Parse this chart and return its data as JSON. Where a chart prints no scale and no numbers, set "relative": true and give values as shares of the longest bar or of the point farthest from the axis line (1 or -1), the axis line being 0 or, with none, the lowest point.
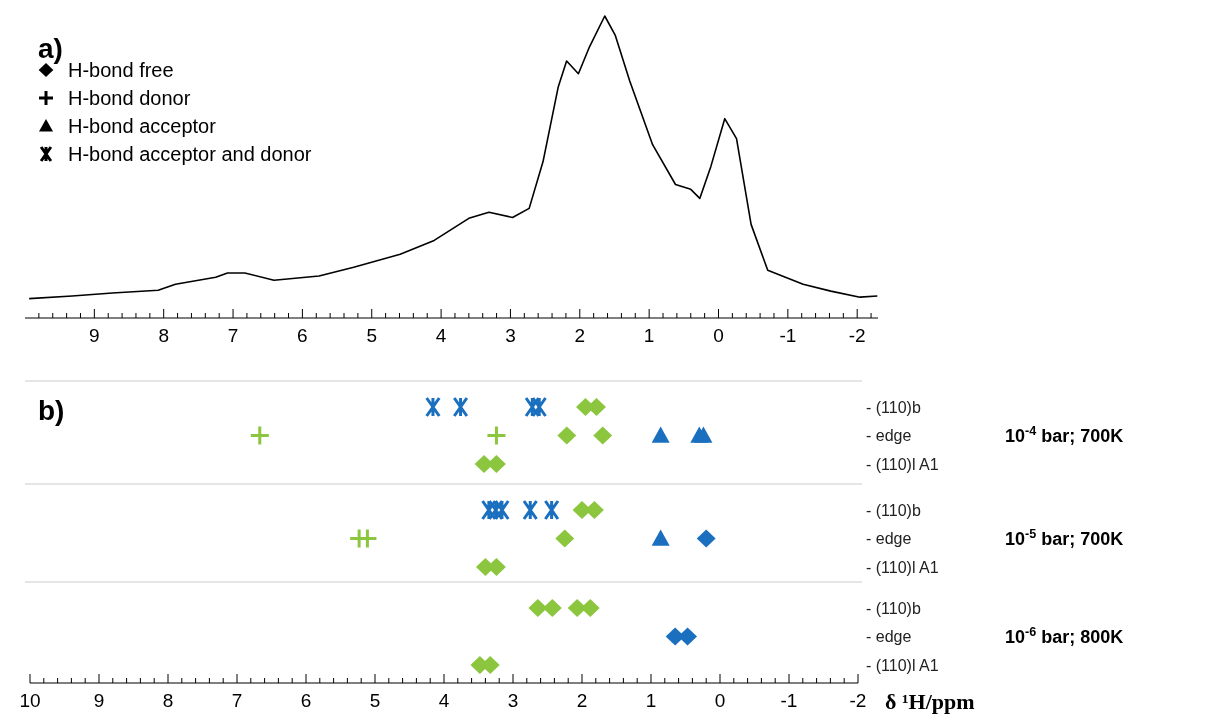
{
  "chart_data": [
    {
      "type": "line",
      "title": "a)",
      "relative": true,
      "xlim": [
        10,
        -2.3
      ],
      "xticks": [
        {
          "value": 9.8,
          "label": null
        },
        {
          "value": 9.6,
          "label": null
        },
        {
          "value": 9.4,
          "label": null
        },
        {
          "value": 9.2,
          "label": null
        },
        9,
        {
          "value": 8.8,
          "label": null
        },
        {
          "value": 8.6,
          "label": null
        },
        {
          "value": 8.4,
          "label": null
        },
        {
          "value": 8.2,
          "label": null
        },
        8,
        {
          "value": 7.8,
          "label": null
        },
        {
          "value": 7.6,
          "label": null
        },
        {
          "value": 7.4,
          "label": null
        },
        {
          "value": 7.2,
          "label": null
        },
        7,
        {
          "value": 6.8,
          "label": null
        },
        {
          "value": 6.6,
          "label": null
        },
        {
          "value": 6.4,
          "label": null
        },
        {
          "value": 6.2,
          "label": null
        },
        6,
        {
          "value": 5.8,
          "label": null
        },
        {
          "value": 5.6,
          "label": null
        },
        {
          "value": 5.4,
          "label": null
        },
        {
          "value": 5.2,
          "label": null
        },
        5,
        {
          "value": 4.8,
          "label": null
        },
        {
          "value": 4.6,
          "label": null
        },
        {
          "value": 4.4,
          "label": null
        },
        {
          "value": 4.2,
          "label": null
        },
        4,
        {
          "value": 3.8,
          "label": null
        },
        {
          "value": 3.6,
          "label": null
        },
        {
          "value": 3.4,
          "label": null
        },
        {
          "value": 3.2,
          "label": null
        },
        3,
        {
          "value": 2.8,
          "label": null
        },
        {
          "value": 2.6,
          "label": null
        },
        {
          "value": 2.4,
          "label": null
        },
        {
          "value": 2.2,
          "label": null
        },
        2,
        {
          "value": 1.8,
          "label": null
        },
        {
          "value": 1.6,
          "label": null
        },
        {
          "value": 1.4,
          "label": null
        },
        {
          "value": 1.2,
          "label": null
        },
        1,
        {
          "value": 0.8,
          "label": null
        },
        {
          "value": 0.6,
          "label": null
        },
        {
          "value": 0.4,
          "label": null
        },
        {
          "value": 0.2,
          "label": null
        },
        0,
        {
          "value": -0.2,
          "label": null
        },
        {
          "value": -0.4,
          "label": null
        },
        {
          "value": -0.6,
          "label": null
        },
        {
          "value": -0.8,
          "label": null
        },
        -1,
        {
          "value": -1.2,
          "label": null
        },
        {
          "value": -1.4,
          "label": null
        },
        {
          "value": -1.6,
          "label": null
        },
        {
          "value": -1.8,
          "label": null
        },
        -2,
        {
          "value": -2.2,
          "label": null
        }
      ],
      "annotations": [
        "H-bond free",
        "H-bond donor",
        "H-bond acceptor",
        "H-bond acceptor and donor"
      ],
      "series": [
        {
          "color": "#000000",
          "x": [
            9.94,
            9.32,
            8.74,
            8.08,
            7.83,
            7.25,
            7.08,
            6.83,
            6.41,
            5.76,
            5.26,
            4.59,
            4.1,
            3.6,
            3.31,
            2.97,
            2.73,
            2.53,
            2.31,
            2.19,
            2.02,
            1.86,
            1.64,
            1.49,
            1.28,
            0.95,
            0.62,
            0.4,
            0.27,
            0.11,
            -0.09,
            -0.26,
            -0.47,
            -0.71,
            -1.22,
            -1.62,
            -2.04,
            -2.29
          ],
          "values": [
            0.064,
            0.073,
            0.083,
            0.092,
            0.112,
            0.135,
            0.149,
            0.149,
            0.125,
            0.139,
            0.168,
            0.211,
            0.257,
            0.33,
            0.35,
            0.333,
            0.363,
            0.518,
            0.766,
            0.851,
            0.809,
            0.898,
            1,
            0.937,
            0.785,
            0.574,
            0.442,
            0.426,
            0.396,
            0.502,
            0.66,
            0.594,
            0.31,
            0.158,
            0.112,
            0.089,
            0.069,
            0.073
          ]
        }
      ]
    },
    {
      "type": "scatter",
      "title": "b)",
      "orientation": "horizontal",
      "xlim": [
        10,
        -2
      ],
      "tick_labels": "y",
      "categories": [
        "- (110)b",
        "- edge",
        "- (110)l A1"
      ],
      "annotations": [
        "10$^{-4}$ bar; 700K"
      ],
      "series": [
        {
          "color": "#1a6fbf",
          "x": [
            "- (110)b",
            "- (110)b",
            "- (110)b",
            "- (110)b"
          ],
          "values": [
            4.16,
            3.76,
            2.72,
            2.62
          ]
        },
        {
          "marker": "triangle",
          "color": "#1a6fbf",
          "x": [
            "- edge",
            "- edge",
            "- edge"
          ],
          "values": [
            0.86,
            0.3,
            0.24
          ]
        },
        {
          "marker": "diamond",
          "color": "#8cc63f",
          "x": [
            "- (110)b",
            "- (110)b",
            "- edge",
            "- edge",
            "- (110)l A1",
            "- (110)l A1"
          ],
          "values": [
            1.95,
            1.79,
            2.22,
            1.7,
            3.42,
            3.24
          ]
        },
        {
          "marker": "cross",
          "color": "#8cc63f",
          "x": [
            "- edge",
            "- edge"
          ],
          "values": [
            6.67,
            3.24
          ]
        }
      ]
    },
    {
      "type": "scatter",
      "orientation": "horizontal",
      "xlim": [
        10,
        -2
      ],
      "tick_labels": "y",
      "categories": [
        "- (110)b",
        "- edge",
        "- (110)l A1"
      ],
      "annotations": [
        "10$^{-5}$ bar; 700K"
      ],
      "series": [
        {
          "color": "#1a6fbf",
          "x": [
            "- (110)b",
            "- (110)b",
            "- (110)b",
            "- (110)b",
            "- (110)b"
          ],
          "values": [
            3.35,
            3.25,
            3.16,
            2.75,
            2.44
          ]
        },
        {
          "marker": "triangle",
          "color": "#1a6fbf",
          "x": [
            "- edge"
          ],
          "values": [
            0.86
          ]
        },
        {
          "marker": "diamond",
          "color": "#1a6fbf",
          "x": [
            "- edge"
          ],
          "values": [
            0.2
          ]
        },
        {
          "marker": "diamond",
          "color": "#8cc63f",
          "x": [
            "- (110)b",
            "- (110)b",
            "- edge",
            "- (110)l A1",
            "- (110)l A1"
          ],
          "values": [
            2,
            1.82,
            2.25,
            3.4,
            3.24
          ]
        },
        {
          "marker": "cross",
          "color": "#8cc63f",
          "x": [
            "- edge",
            "- edge"
          ],
          "values": [
            5.23,
            5.11
          ]
        }
      ]
    },
    {
      "type": "scatter",
      "orientation": "horizontal",
      "xlabel": "δ ¹H/ppm",
      "xlim": [
        10,
        -2
      ],
      "categories": [
        "- (110)b",
        "- edge",
        "- (110)l A1"
      ],
      "xticks": [
        10,
        {
          "value": 9.8,
          "label": null
        },
        {
          "value": 9.6,
          "label": null
        },
        {
          "value": 9.4,
          "label": null
        },
        {
          "value": 9.2,
          "label": null
        },
        9,
        {
          "value": 8.8,
          "label": null
        },
        {
          "value": 8.6,
          "label": null
        },
        {
          "value": 8.4,
          "label": null
        },
        {
          "value": 8.2,
          "label": null
        },
        8,
        {
          "value": 7.8,
          "label": null
        },
        {
          "value": 7.6,
          "label": null
        },
        {
          "value": 7.4,
          "label": null
        },
        {
          "value": 7.2,
          "label": null
        },
        7,
        {
          "value": 6.8,
          "label": null
        },
        {
          "value": 6.6,
          "label": null
        },
        {
          "value": 6.4,
          "label": null
        },
        {
          "value": 6.2,
          "label": null
        },
        6,
        {
          "value": 5.8,
          "label": null
        },
        {
          "value": 5.6,
          "label": null
        },
        {
          "value": 5.4,
          "label": null
        },
        {
          "value": 5.2,
          "label": null
        },
        5,
        {
          "value": 4.8,
          "label": null
        },
        {
          "value": 4.6,
          "label": null
        },
        {
          "value": 4.4,
          "label": null
        },
        {
          "value": 4.2,
          "label": null
        },
        4,
        {
          "value": 3.8,
          "label": null
        },
        {
          "value": 3.6,
          "label": null
        },
        {
          "value": 3.4,
          "label": null
        },
        {
          "value": 3.2,
          "label": null
        },
        3,
        {
          "value": 2.8,
          "label": null
        },
        {
          "value": 2.6,
          "label": null
        },
        {
          "value": 2.4,
          "label": null
        },
        {
          "value": 2.2,
          "label": null
        },
        2,
        {
          "value": 1.8,
          "label": null
        },
        {
          "value": 1.6,
          "label": null
        },
        {
          "value": 1.4,
          "label": null
        },
        {
          "value": 1.2,
          "label": null
        },
        1,
        {
          "value": 0.8,
          "label": null
        },
        {
          "value": 0.6,
          "label": null
        },
        {
          "value": 0.4,
          "label": null
        },
        {
          "value": 0.2,
          "label": null
        },
        0,
        {
          "value": -0.2,
          "label": null
        },
        {
          "value": -0.4,
          "label": null
        },
        {
          "value": -0.6,
          "label": null
        },
        {
          "value": -0.8,
          "label": null
        },
        -1,
        {
          "value": -1.2,
          "label": null
        },
        {
          "value": -1.4,
          "label": null
        },
        {
          "value": -1.6,
          "label": null
        },
        {
          "value": -1.8,
          "label": null
        },
        -2
      ],
      "annotations": [
        "10$^{-6}$ bar; 800K"
      ],
      "series": [
        {
          "marker": "diamond",
          "color": "#1a6fbf",
          "x": [
            "- edge",
            "- edge"
          ],
          "values": [
            0.65,
            0.47
          ]
        },
        {
          "marker": "diamond",
          "color": "#8cc63f",
          "x": [
            "- (110)b",
            "- (110)b",
            "- (110)b",
            "- (110)b",
            "- (110)l A1",
            "- (110)l A1"
          ],
          "values": [
            2.64,
            2.43,
            2.07,
            1.88,
            3.48,
            3.33
          ]
        }
      ]
    }
  ]
}
